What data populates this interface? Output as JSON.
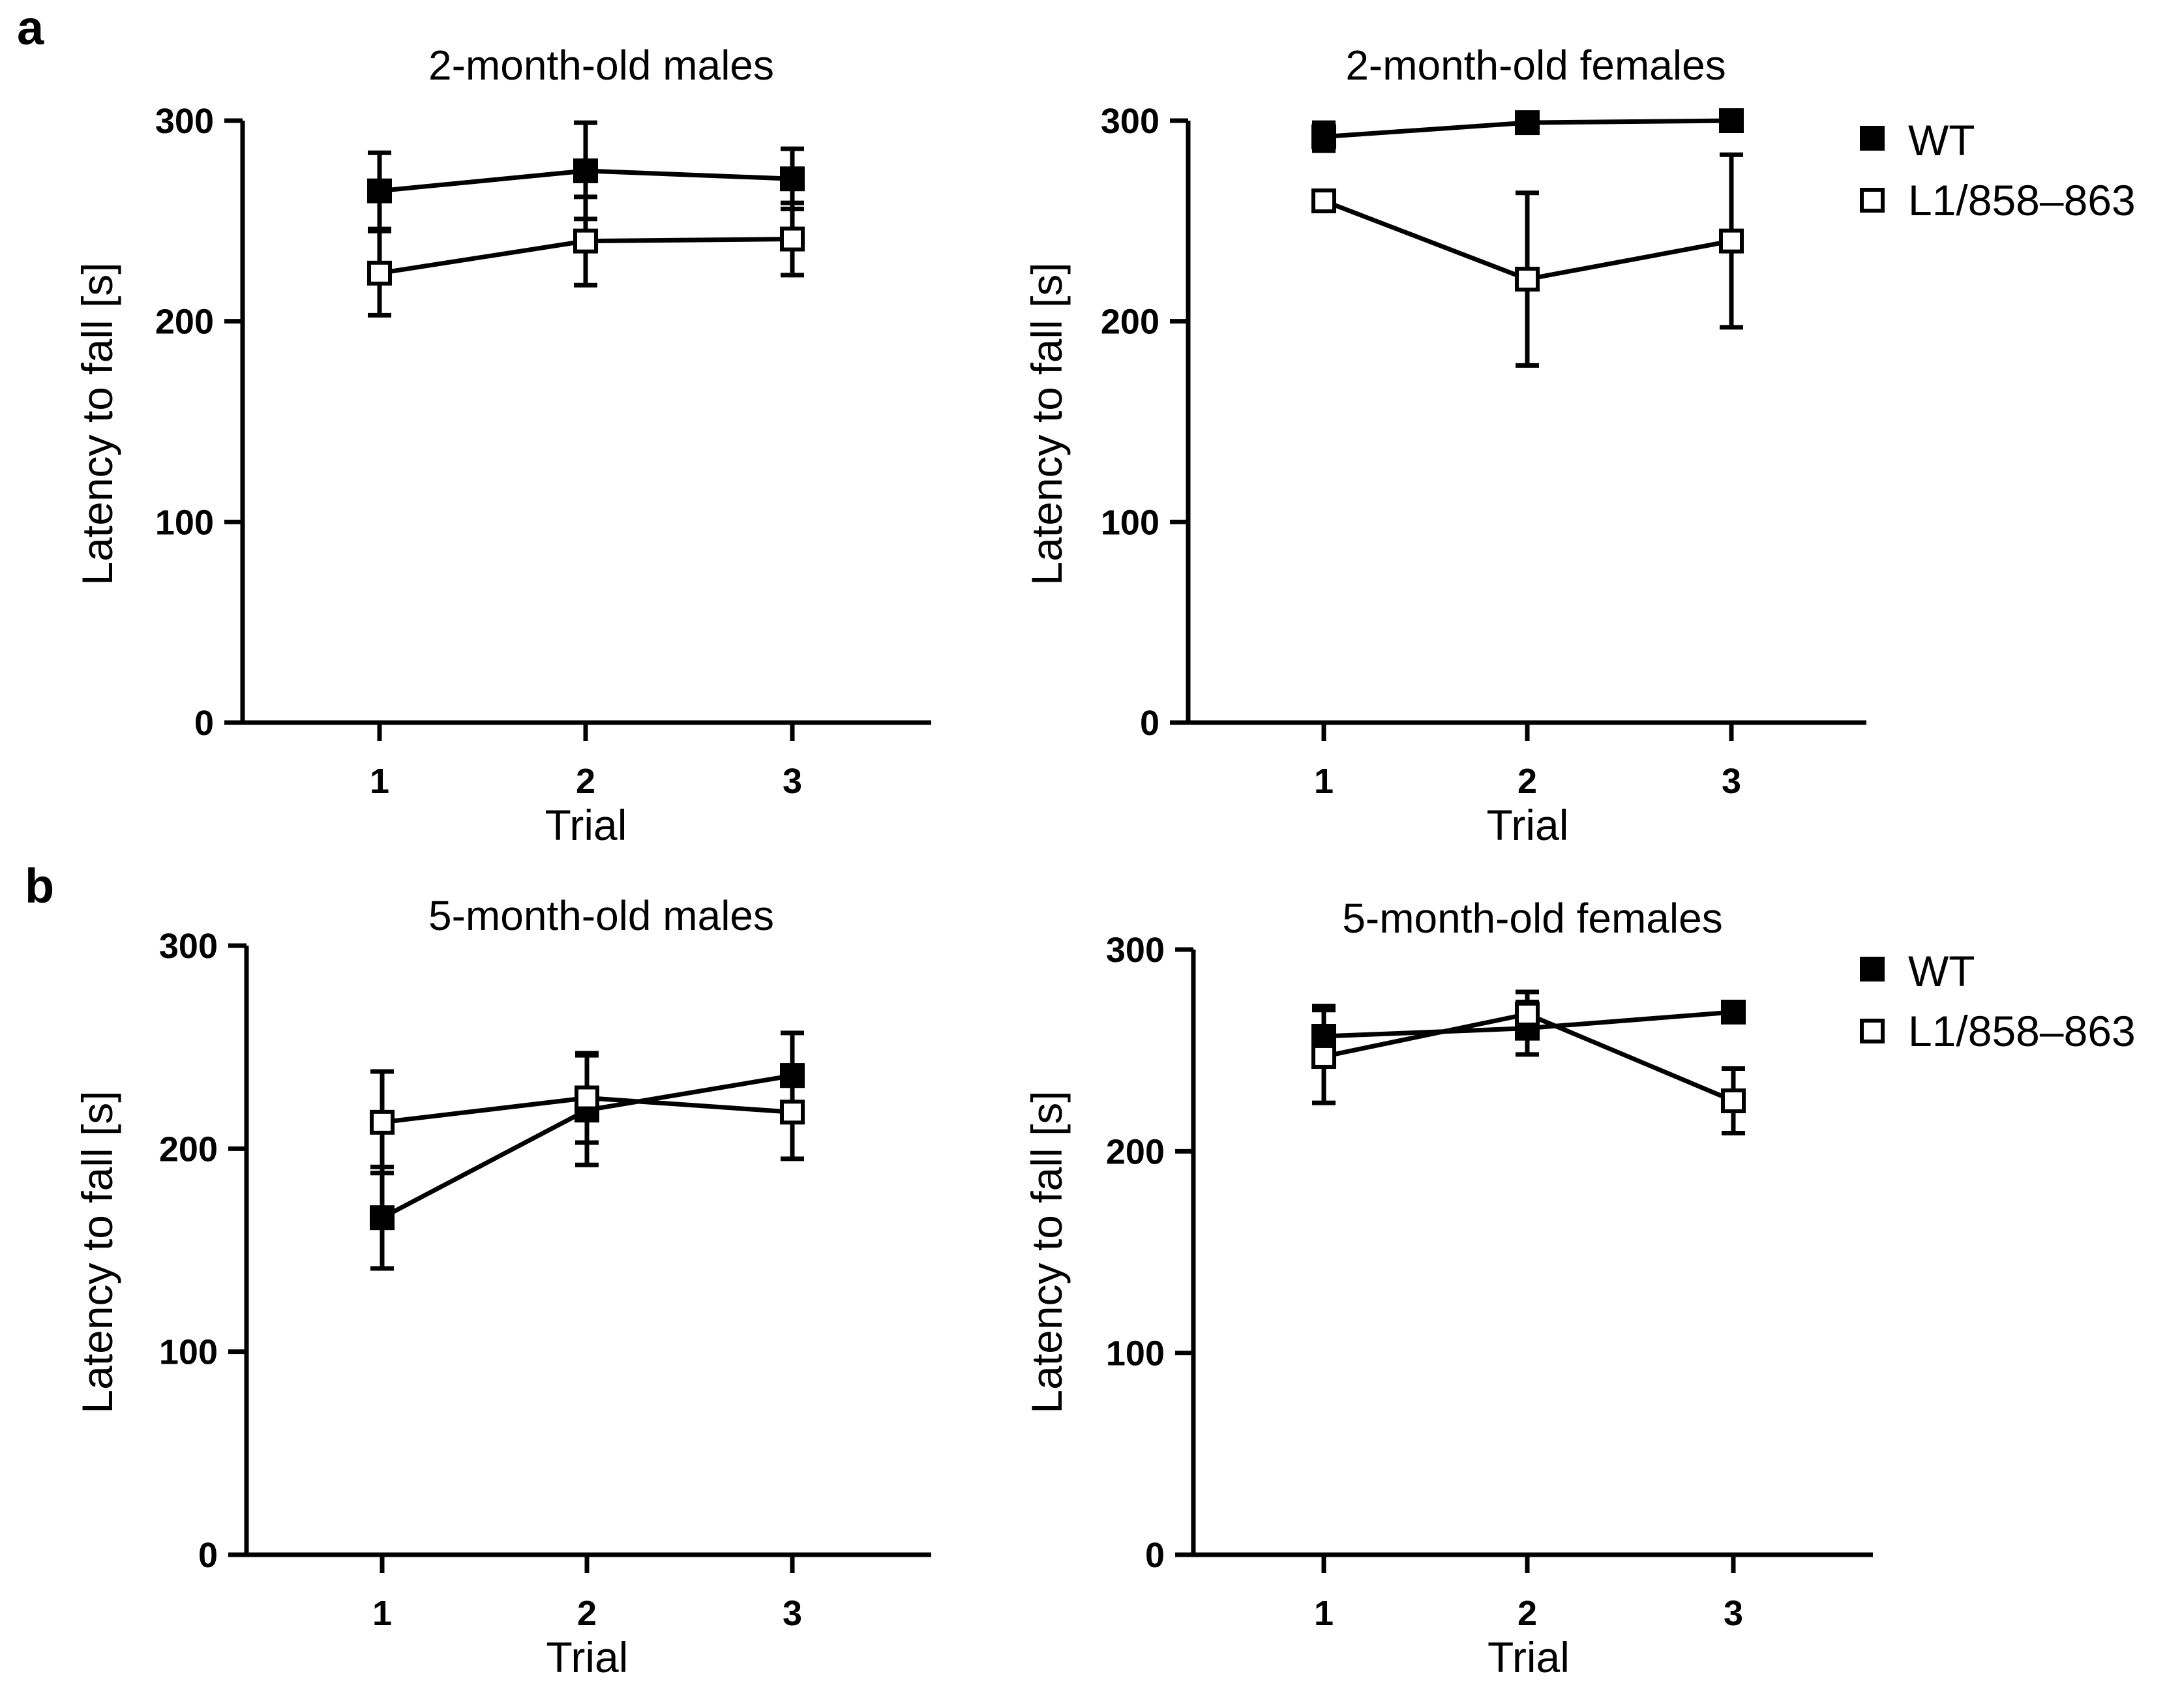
{
  "panels": {
    "a": "a",
    "b": "b"
  },
  "legend": {
    "wt": "WT",
    "l1": "L1/858–863"
  },
  "colors": {
    "ink": "#000000",
    "background": "#ffffff"
  },
  "chart_data": [
    {
      "type": "line",
      "panel": "a",
      "title": "2-month-old males",
      "xlabel": "Trial",
      "ylabel": "Latency to fall [s]",
      "categories": [
        "1",
        "2",
        "3"
      ],
      "yticks": [
        "0",
        "100",
        "200",
        "300"
      ],
      "ylim": [
        0,
        300
      ],
      "series": [
        {
          "name": "WT",
          "marker": "filled-square",
          "values": [
            265,
            275,
            271
          ],
          "errors": [
            19,
            24,
            15
          ]
        },
        {
          "name": "L1/858–863",
          "marker": "open-square",
          "values": [
            224,
            240,
            241
          ],
          "errors": [
            21,
            22,
            18
          ]
        }
      ]
    },
    {
      "type": "line",
      "panel": "a",
      "title": "2-month-old females",
      "xlabel": "Trial",
      "ylabel": "Latency to fall [s]",
      "categories": [
        "1",
        "2",
        "3"
      ],
      "yticks": [
        "0",
        "100",
        "200",
        "300"
      ],
      "ylim": [
        0,
        300
      ],
      "series": [
        {
          "name": "WT",
          "marker": "filled-square",
          "values": [
            292,
            299,
            300
          ],
          "errors": [
            7,
            2,
            1
          ]
        },
        {
          "name": "L1/858–863",
          "marker": "open-square",
          "values": [
            260,
            221,
            240
          ],
          "errors": [
            5,
            43,
            43
          ]
        }
      ]
    },
    {
      "type": "line",
      "panel": "b",
      "title": "5-month-old males",
      "xlabel": "Trial",
      "ylabel": "Latency to fall [s]",
      "categories": [
        "1",
        "2",
        "3"
      ],
      "yticks": [
        "0",
        "100",
        "200",
        "300"
      ],
      "ylim": [
        0,
        300
      ],
      "series": [
        {
          "name": "WT",
          "marker": "filled-square",
          "values": [
            166,
            219,
            236
          ],
          "errors": [
            25,
            27,
            21
          ]
        },
        {
          "name": "L1/858–863",
          "marker": "open-square",
          "values": [
            213,
            225,
            218
          ],
          "errors": [
            25,
            22,
            23
          ]
        }
      ]
    },
    {
      "type": "line",
      "panel": "b",
      "title": "5-month-old females",
      "xlabel": "Trial",
      "ylabel": "Latency to fall [s]",
      "categories": [
        "1",
        "2",
        "3"
      ],
      "yticks": [
        "0",
        "100",
        "200",
        "300"
      ],
      "ylim": [
        0,
        300
      ],
      "series": [
        {
          "name": "WT",
          "marker": "filled-square",
          "values": [
            257,
            261,
            269
          ],
          "errors": [
            15,
            13,
            4
          ]
        },
        {
          "name": "L1/858–863",
          "marker": "open-square",
          "values": [
            247,
            268,
            225
          ],
          "errors": [
            23,
            11,
            16
          ]
        }
      ]
    }
  ]
}
